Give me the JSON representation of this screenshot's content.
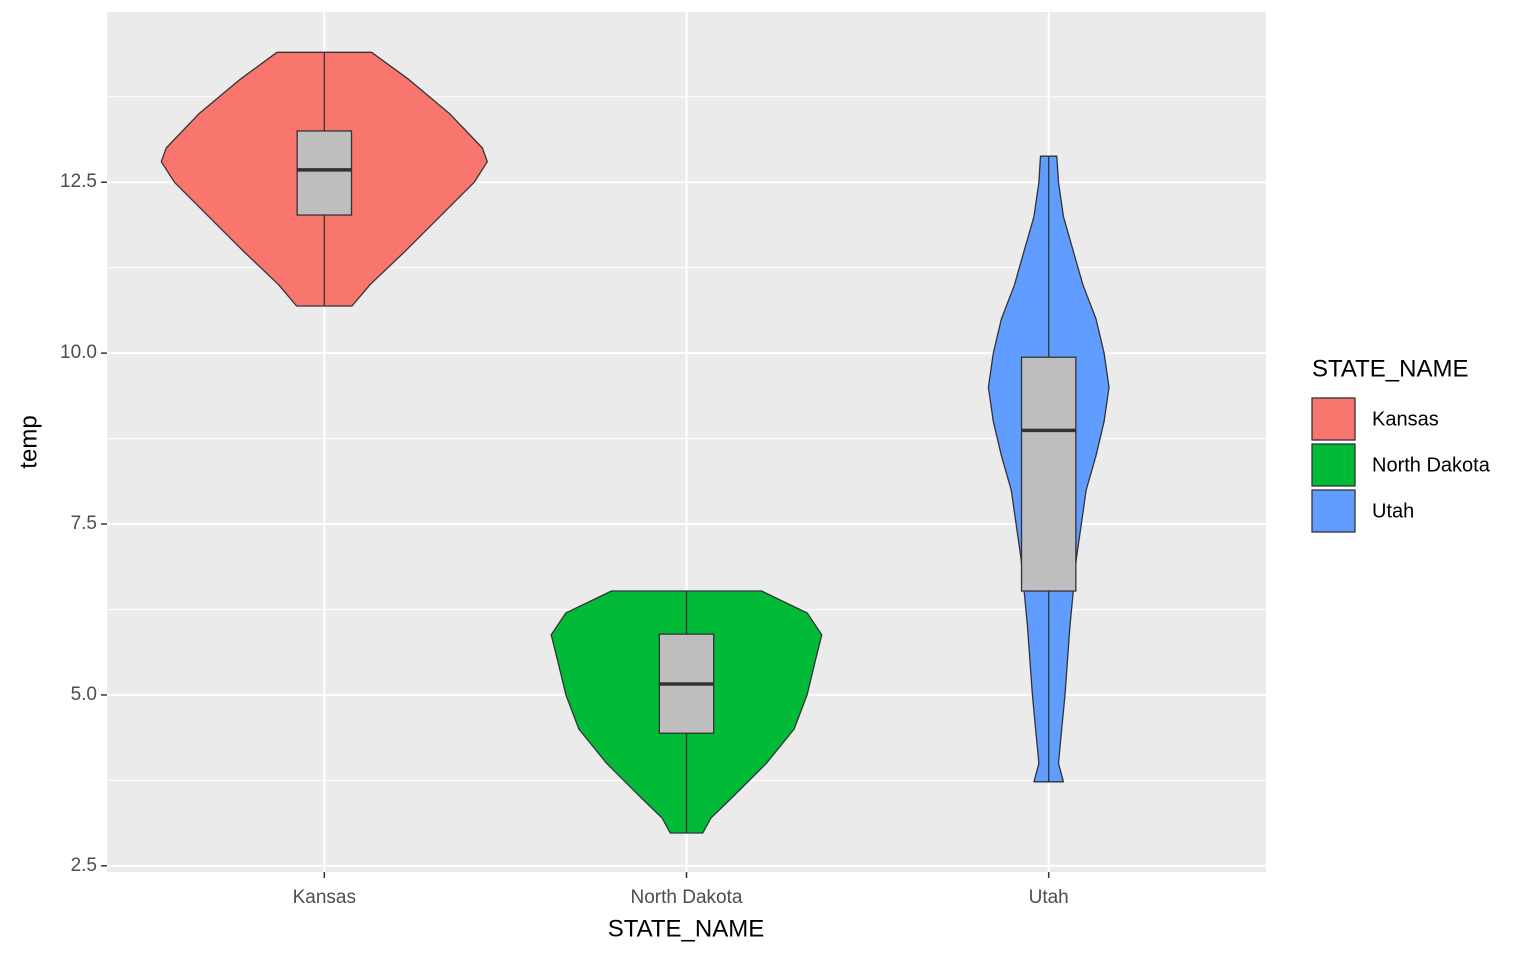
{
  "chart_data": {
    "type": "violin",
    "x_label": "STATE_NAME",
    "y_label": "temp",
    "legend_title": "STATE_NAME",
    "legend_position": "right",
    "categories": [
      "Kansas",
      "North Dakota",
      "Utah"
    ],
    "ylim": [
      2.41,
      14.99
    ],
    "yticks": [
      12.5,
      {
        "value": 10,
        "label": "10.0"
      },
      7.5,
      {
        "value": 5,
        "label": "5.0"
      },
      2.5
    ],
    "minor_yticks": [
      3.75,
      6.25,
      8.75,
      11.25,
      13.75
    ],
    "grid": true,
    "box_color": "#bebebe",
    "series": [
      {
        "name": "Kansas",
        "color": "#f8766d",
        "profile": {
          "y": [
            14.4,
            14.0,
            13.5,
            13.0,
            12.8,
            12.5,
            12.0,
            11.5,
            11.0,
            10.69
          ],
          "width": [
            0.29,
            0.52,
            0.77,
            0.97,
            1.0,
            0.92,
            0.71,
            0.5,
            0.28,
            0.17
          ]
        },
        "box": {
          "min": 10.69,
          "q1": 12.02,
          "median": 12.68,
          "q3": 13.25,
          "max": 14.4
        }
      },
      {
        "name": "North Dakota",
        "color": "#00ba38",
        "profile": {
          "y": [
            6.52,
            6.2,
            5.88,
            5.5,
            5.0,
            4.5,
            4.0,
            3.5,
            3.2,
            2.98
          ],
          "width": [
            0.46,
            0.74,
            0.83,
            0.79,
            0.74,
            0.66,
            0.49,
            0.28,
            0.15,
            0.1
          ]
        },
        "box": {
          "min": 2.98,
          "q1": 4.44,
          "median": 5.16,
          "q3": 5.89,
          "max": 6.52
        }
      },
      {
        "name": "Utah",
        "color": "#619cff",
        "profile": {
          "y": [
            12.88,
            12.5,
            12.0,
            11.5,
            11.0,
            10.5,
            10.0,
            9.5,
            9.0,
            8.5,
            8.0,
            7.5,
            7.0,
            6.0,
            5.0,
            4.5,
            4.0,
            3.73
          ],
          "width": [
            0.05,
            0.06,
            0.09,
            0.15,
            0.21,
            0.29,
            0.34,
            0.37,
            0.34,
            0.29,
            0.23,
            0.2,
            0.17,
            0.13,
            0.1,
            0.08,
            0.06,
            0.09
          ]
        },
        "box": {
          "min": 3.73,
          "q1": 6.52,
          "median": 8.87,
          "q3": 9.94,
          "max": 12.88
        }
      }
    ]
  }
}
